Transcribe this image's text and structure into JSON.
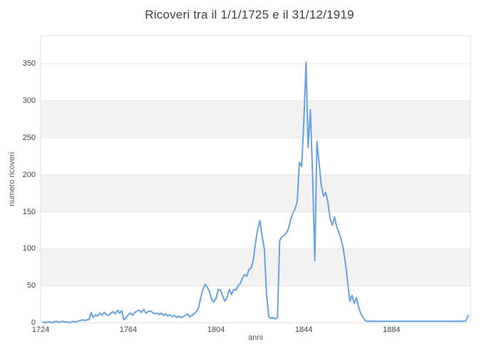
{
  "chart_data": {
    "type": "line",
    "title": "Ricoveri tra il 1/1/1725 e il 31/12/1919",
    "xlabel": "anni",
    "ylabel": "numero ricoveri",
    "x_start": 1725,
    "x_step": 1,
    "xlim": [
      1724,
      1920
    ],
    "ylim": [
      0,
      388
    ],
    "x_ticks": [
      1724,
      1764,
      1804,
      1844,
      1884
    ],
    "y_ticks": [
      0,
      50,
      100,
      150,
      200,
      250,
      300,
      350
    ],
    "grid": "horizontal-only",
    "legend": "none",
    "band_intervals": [
      [
        50,
        100
      ],
      [
        150,
        200
      ],
      [
        250,
        300
      ]
    ],
    "line_color": "#66a2e4",
    "band_color": "#f2f2f2",
    "grid_color": "#e4e4e4",
    "border_color": "#dcdcdc",
    "values": [
      1,
      0,
      1,
      1,
      0,
      1,
      2,
      1,
      1,
      2,
      1,
      1,
      0,
      1,
      2,
      1,
      2,
      3,
      4,
      3,
      4,
      4,
      14,
      7,
      11,
      9,
      13,
      10,
      14,
      11,
      10,
      13,
      15,
      12,
      17,
      13,
      16,
      4,
      7,
      11,
      13,
      10,
      14,
      16,
      17,
      14,
      18,
      13,
      15,
      16,
      14,
      12,
      13,
      11,
      13,
      10,
      12,
      9,
      11,
      8,
      10,
      7,
      9,
      7,
      8,
      10,
      12,
      8,
      10,
      12,
      15,
      20,
      34,
      45,
      52,
      48,
      42,
      31,
      28,
      33,
      45,
      44,
      36,
      29,
      34,
      45,
      38,
      45,
      44,
      50,
      53,
      60,
      65,
      63,
      72,
      74,
      85,
      108,
      127,
      138,
      117,
      100,
      39,
      8,
      6,
      7,
      5,
      7,
      111,
      116,
      118,
      121,
      127,
      139,
      148,
      154,
      164,
      217,
      211,
      272,
      352,
      237,
      288,
      200,
      84,
      245,
      215,
      185,
      171,
      176,
      163,
      140,
      132,
      143,
      130,
      122,
      113,
      100,
      80,
      55,
      29,
      37,
      26,
      34,
      21,
      12,
      7,
      3,
      2,
      2,
      2,
      2,
      2,
      2,
      2,
      2,
      2,
      2,
      2,
      2,
      2,
      2,
      2,
      2,
      2,
      2,
      2,
      2,
      2,
      2,
      2,
      2,
      2,
      2,
      2,
      2,
      2,
      2,
      2,
      2,
      2,
      2,
      2,
      2,
      2,
      2,
      2,
      2,
      2,
      2,
      2,
      2,
      2,
      3,
      10
    ]
  }
}
